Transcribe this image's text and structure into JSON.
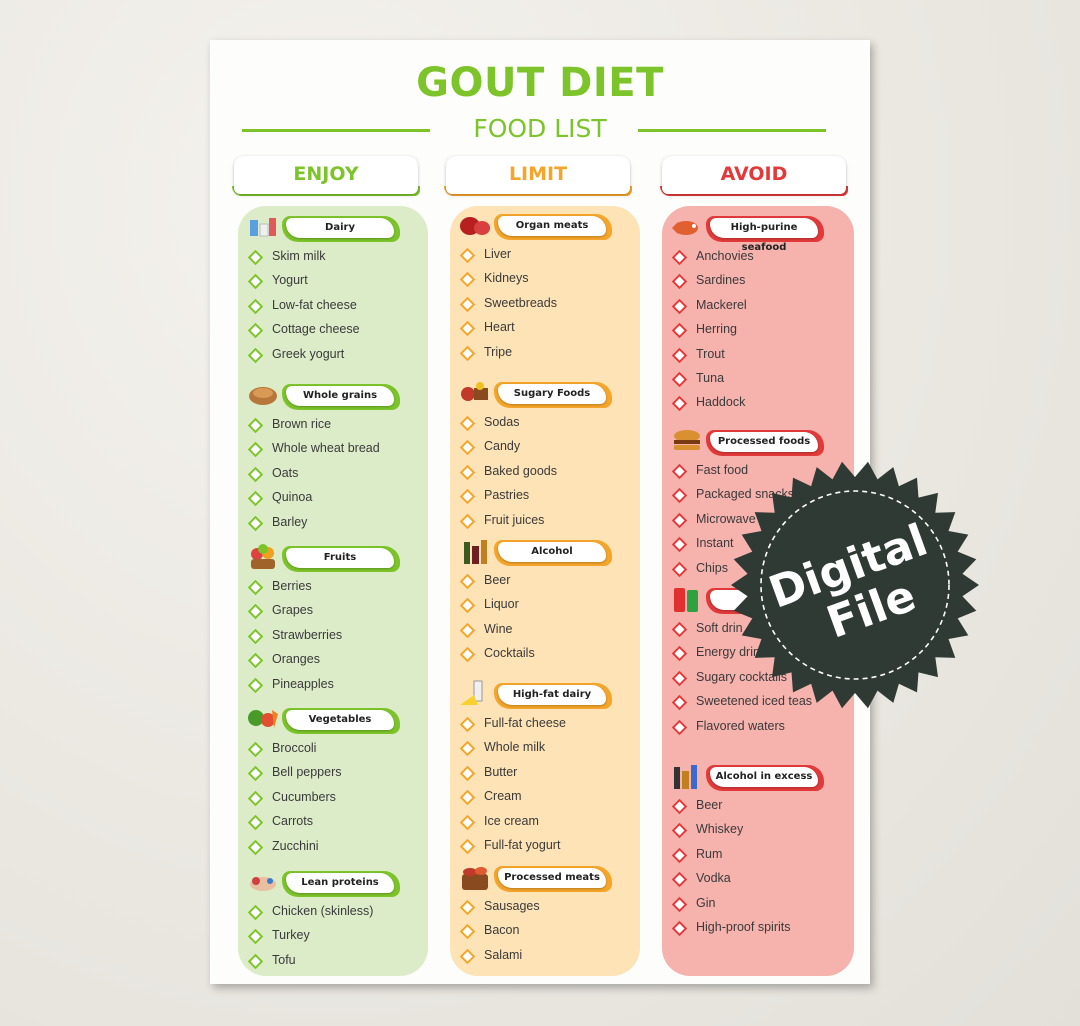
{
  "header": {
    "title": "GOUT DIET",
    "subtitle": "FOOD LIST"
  },
  "colors": {
    "enjoy": "#7cc42a",
    "enjoy_panel": "#dcecc9",
    "limit": "#f4a52a",
    "limit_panel": "#fde3b6",
    "avoid": "#e23a3a",
    "avoid_panel": "#f6b2ad",
    "seal": "#2f3a34"
  },
  "columns": [
    {
      "key": "enjoy",
      "label": "ENJOY",
      "groups": [
        {
          "title": "Dairy",
          "icon": "dairy-icon",
          "items": [
            "Skim milk",
            "Yogurt",
            "Low-fat cheese",
            "Cottage cheese",
            "Greek yogurt"
          ]
        },
        {
          "title": "Whole grains",
          "icon": "bread-icon",
          "items": [
            "Brown rice",
            "Whole wheat bread",
            "Oats",
            "Quinoa",
            "Barley"
          ]
        },
        {
          "title": "Fruits",
          "icon": "fruit-basket-icon",
          "items": [
            "Berries",
            "Grapes",
            "Strawberries",
            "Oranges",
            "Pineapples"
          ]
        },
        {
          "title": "Vegetables",
          "icon": "vegetables-icon",
          "items": [
            "Broccoli",
            "Bell peppers",
            "Cucumbers",
            "Carrots",
            "Zucchini"
          ]
        },
        {
          "title": "Lean proteins",
          "icon": "chicken-icon",
          "items": [
            "Chicken (skinless)",
            "Turkey",
            "Tofu"
          ]
        }
      ]
    },
    {
      "key": "limit",
      "label": "LIMIT",
      "groups": [
        {
          "title": "Organ meats",
          "icon": "organ-meat-icon",
          "items": [
            "Liver",
            "Kidneys",
            "Sweetbreads",
            "Heart",
            "Tripe"
          ]
        },
        {
          "title": "Sugary Foods",
          "icon": "sweets-icon",
          "items": [
            "Sodas",
            "Candy",
            "Baked goods",
            "Pastries",
            "Fruit juices"
          ]
        },
        {
          "title": "Alcohol",
          "icon": "bottles-icon",
          "items": [
            "Beer",
            "Liquor",
            "Wine",
            "Cocktails"
          ]
        },
        {
          "title": "High-fat dairy",
          "icon": "cheese-milk-icon",
          "items": [
            "Full-fat cheese",
            "Whole milk",
            "Butter",
            "Cream",
            "Ice cream",
            "Full-fat yogurt"
          ]
        },
        {
          "title": "Processed meats",
          "icon": "sausage-basket-icon",
          "items": [
            "Sausages",
            "Bacon",
            "Salami"
          ]
        }
      ]
    },
    {
      "key": "avoid",
      "label": "AVOID",
      "groups": [
        {
          "title": "High-purine seafood",
          "icon": "seafood-icon",
          "items": [
            "Anchovies",
            "Sardines",
            "Mackerel",
            "Herring",
            "Trout",
            "Tuna",
            "Haddock"
          ]
        },
        {
          "title": "Processed foods",
          "icon": "burger-icon",
          "items": [
            "Fast food",
            "Packaged snacks",
            "Microwave",
            "Instant",
            "Chips"
          ]
        },
        {
          "title": "",
          "icon": "soda-cans-icon",
          "items": [
            "Soft drin",
            "Energy drin",
            "Sugary cocktails",
            "Sweetened iced teas",
            "Flavored waters"
          ]
        },
        {
          "title": "Alcohol in excess",
          "icon": "liquor-bottles-icon",
          "items": [
            "Beer",
            "Whiskey",
            "Rum",
            "Vodka",
            "Gin",
            "High-proof spirits"
          ]
        }
      ]
    }
  ],
  "badge": {
    "line1": "Digital",
    "line2": "File"
  }
}
